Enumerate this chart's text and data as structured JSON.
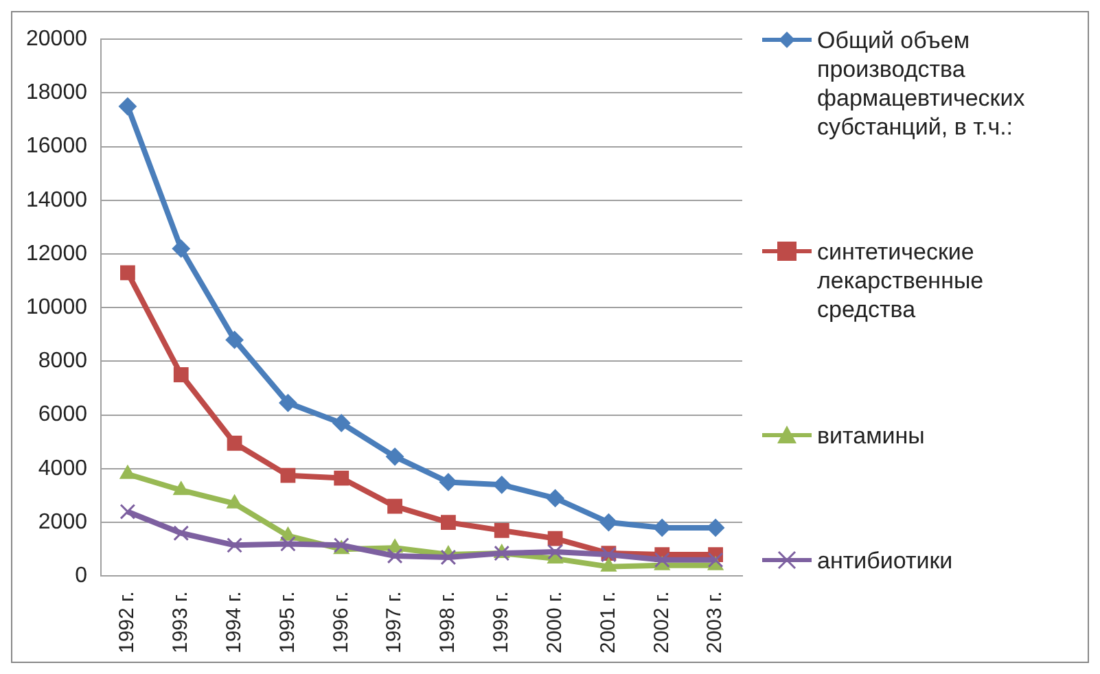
{
  "chart_data": {
    "type": "line",
    "categories": [
      "1992 г.",
      "1993 г.",
      "1994 г.",
      "1995 г.",
      "1996 г.",
      "1997 г.",
      "1998 г.",
      "1999 г.",
      "2000 г.",
      "2001 г.",
      "2002 г.",
      "2003 г."
    ],
    "ylim": [
      0,
      20000
    ],
    "yticks": [
      0,
      2000,
      4000,
      6000,
      8000,
      10000,
      12000,
      14000,
      16000,
      18000,
      20000
    ],
    "grid": "y",
    "legend": "right",
    "series": [
      {
        "name": "Общий объем производства фармацевтических субстанций, в т.ч.:",
        "color": "#4a7ebb",
        "marker": "diamond",
        "values": [
          17500,
          12200,
          8800,
          6450,
          5700,
          4450,
          3500,
          3400,
          2900,
          2000,
          1800,
          1800
        ]
      },
      {
        "name": "синтетические лекарственные средства",
        "color": "#be4b48",
        "marker": "square",
        "values": [
          11300,
          7500,
          4950,
          3750,
          3650,
          2600,
          2000,
          1700,
          1400,
          850,
          800,
          800
        ]
      },
      {
        "name": "витамины",
        "color": "#98b954",
        "marker": "triangle",
        "values": [
          3800,
          3200,
          2700,
          1500,
          1000,
          1050,
          800,
          850,
          650,
          350,
          400,
          400
        ]
      },
      {
        "name": "антибиотики",
        "color": "#7d60a0",
        "marker": "cross",
        "values": [
          2400,
          1600,
          1150,
          1200,
          1150,
          750,
          700,
          850,
          900,
          800,
          600,
          600
        ]
      }
    ]
  }
}
